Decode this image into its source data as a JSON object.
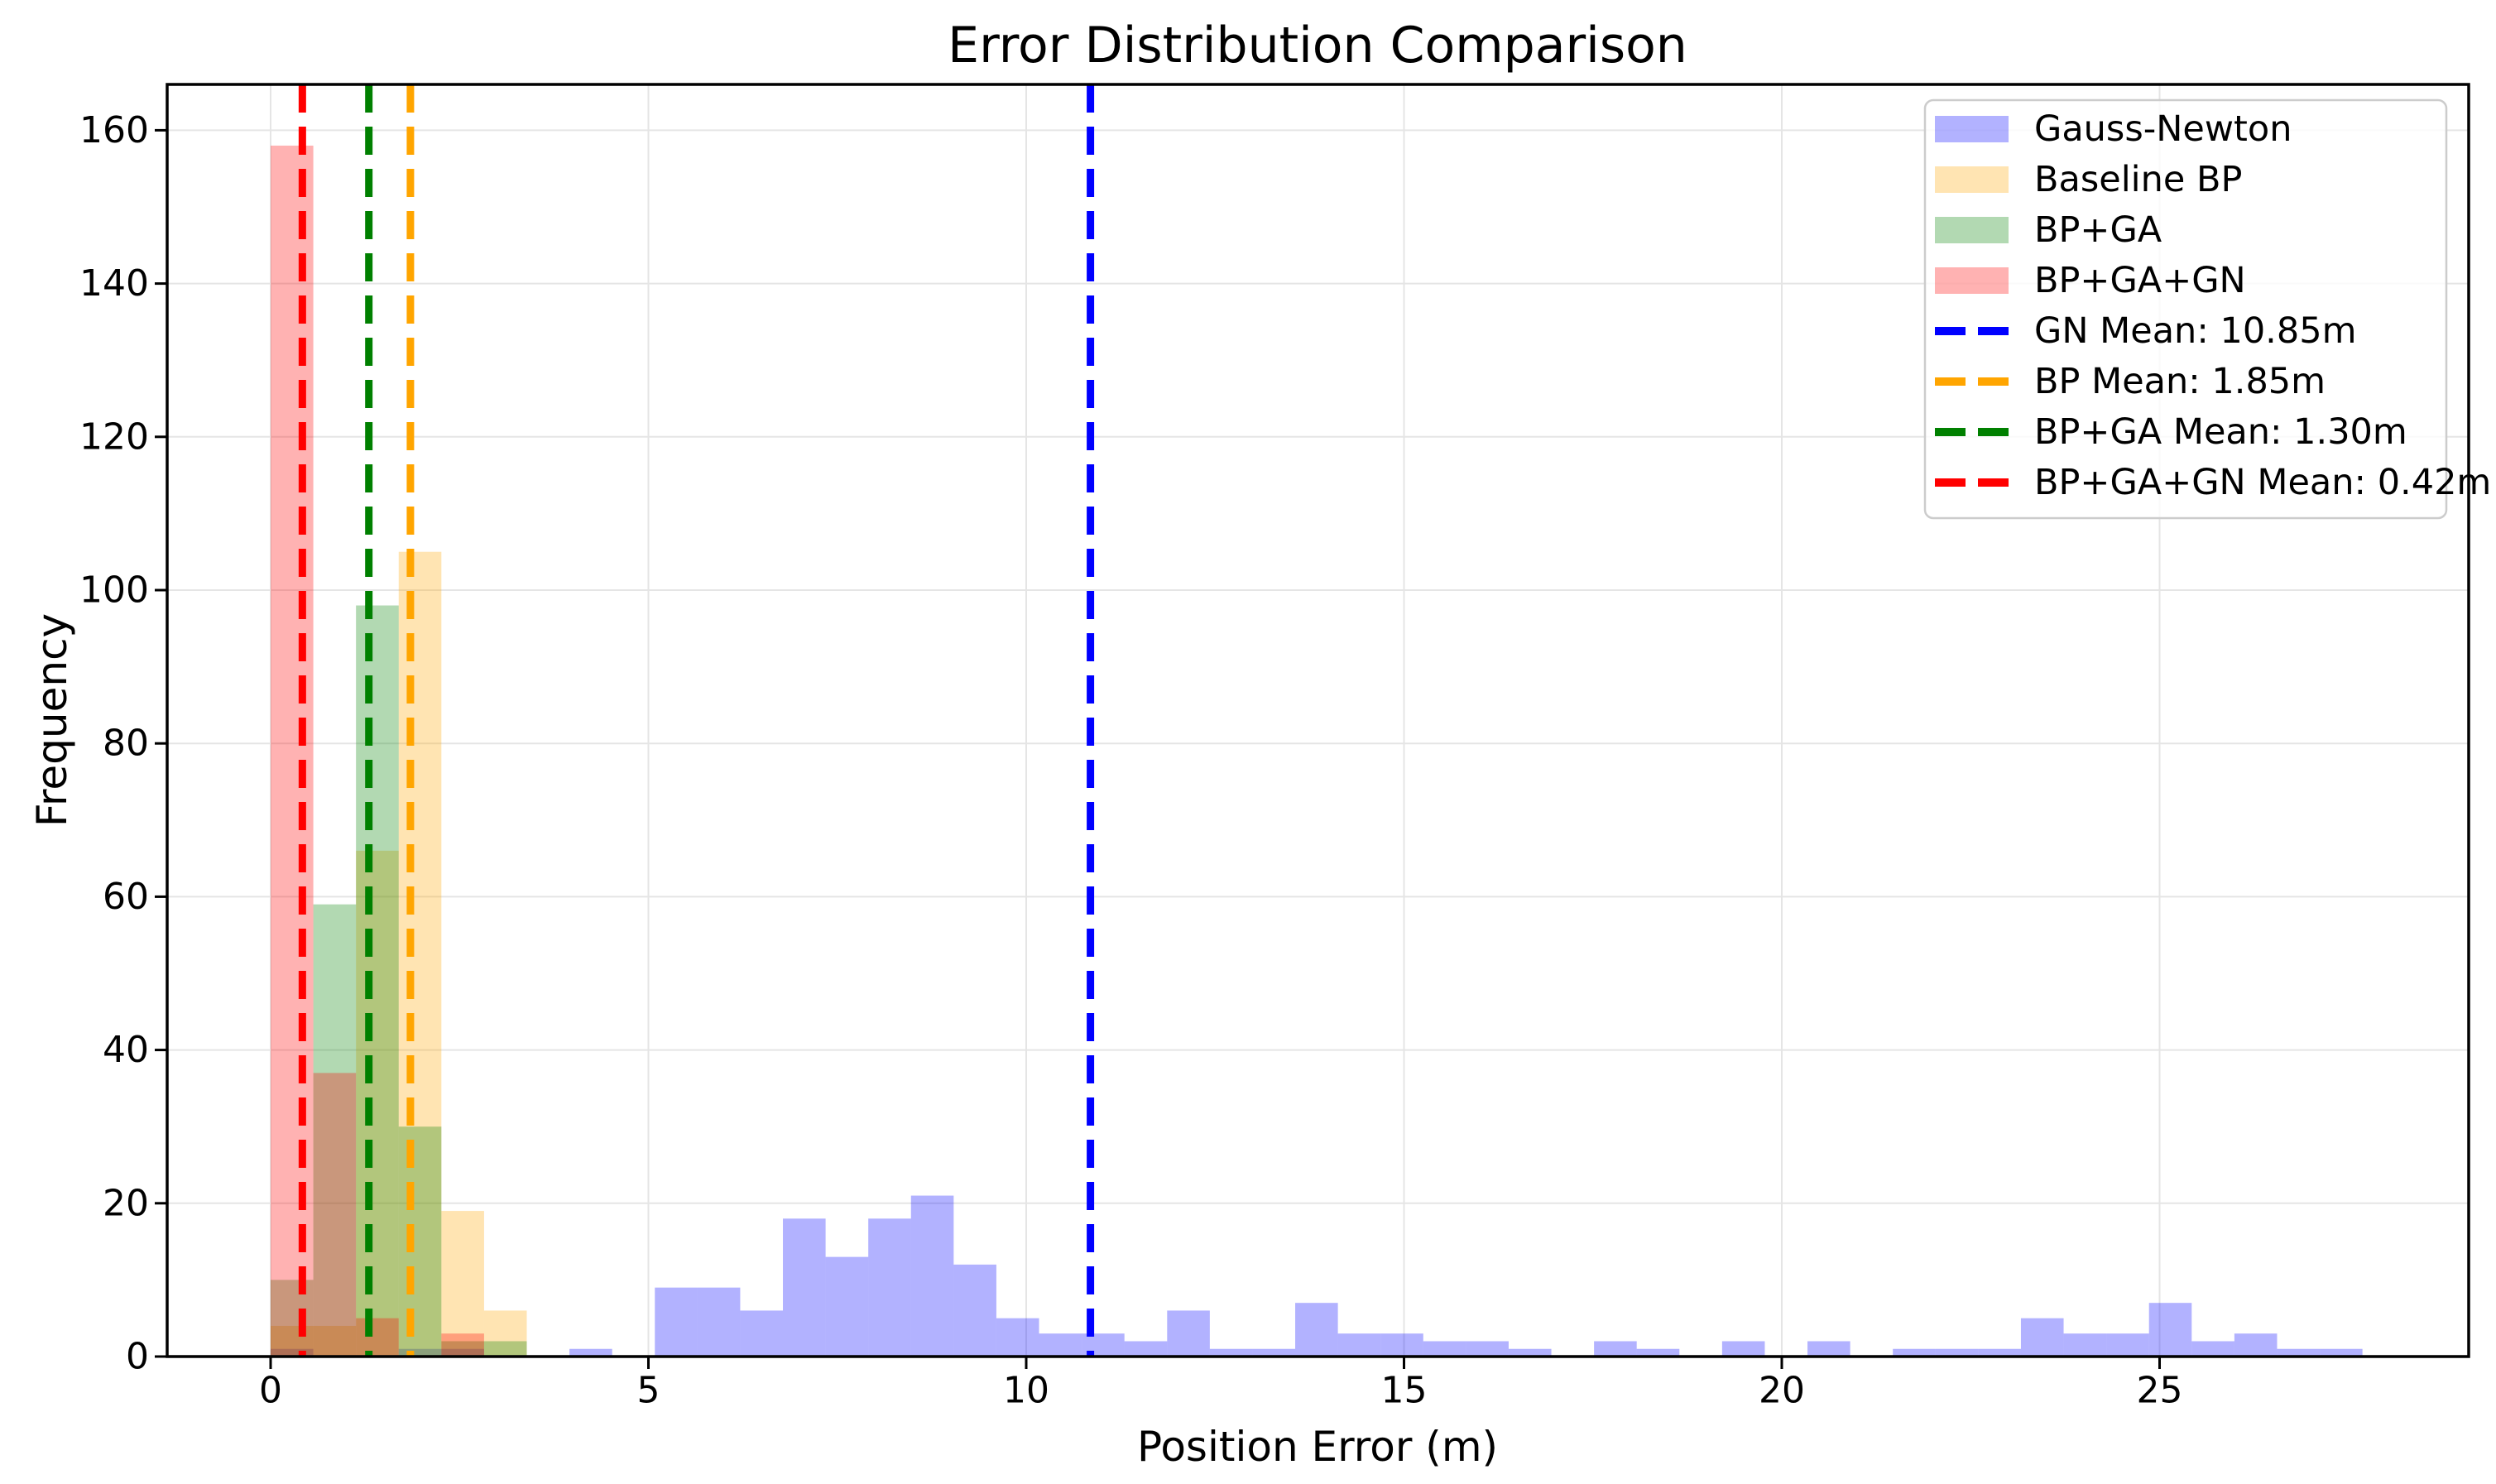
{
  "figure": {
    "title": "Error Distribution Comparison",
    "xlabel": "Position Error (m)",
    "ylabel": "Frequency",
    "background_color": "#ffffff",
    "grid_color": "#e5e5e5",
    "spine_color": "#000000"
  },
  "chart_data": {
    "type": "bar",
    "subtype": "overlapping-histograms",
    "title": "Error Distribution Comparison",
    "xlabel": "Position Error (m)",
    "ylabel": "Frequency",
    "bin_width": 0.565,
    "fill_alpha": 0.3,
    "grid": true,
    "legend_position": "upper right",
    "xlim": [
      -1.37,
      29.1
    ],
    "ylim": [
      0,
      166
    ],
    "x_ticks": [
      0,
      5,
      10,
      15,
      20,
      25
    ],
    "y_ticks": [
      0,
      20,
      40,
      60,
      80,
      100,
      120,
      140,
      160
    ],
    "series": [
      {
        "name": "Gauss-Newton",
        "color": "#0000ff",
        "bars": [
          [
            0,
            1
          ],
          [
            1.695,
            1
          ],
          [
            2.26,
            1
          ],
          [
            3.955,
            1
          ],
          [
            5.085,
            9
          ],
          [
            5.65,
            9
          ],
          [
            6.215,
            6
          ],
          [
            6.78,
            18
          ],
          [
            7.345,
            13
          ],
          [
            7.91,
            18
          ],
          [
            8.475,
            21
          ],
          [
            9.04,
            12
          ],
          [
            9.605,
            5
          ],
          [
            10.17,
            3
          ],
          [
            10.735,
            3
          ],
          [
            11.3,
            2
          ],
          [
            11.865,
            6
          ],
          [
            12.43,
            1
          ],
          [
            12.995,
            1
          ],
          [
            13.56,
            7
          ],
          [
            14.125,
            3
          ],
          [
            14.69,
            3
          ],
          [
            15.255,
            2
          ],
          [
            15.82,
            2
          ],
          [
            16.385,
            1
          ],
          [
            17.515,
            2
          ],
          [
            18.08,
            1
          ],
          [
            19.21,
            2
          ],
          [
            20.34,
            2
          ],
          [
            21.47,
            1
          ],
          [
            22.035,
            1
          ],
          [
            22.6,
            1
          ],
          [
            23.165,
            5
          ],
          [
            23.73,
            3
          ],
          [
            24.295,
            3
          ],
          [
            24.86,
            7
          ],
          [
            25.425,
            2
          ],
          [
            25.99,
            3
          ],
          [
            26.555,
            1
          ],
          [
            27.12,
            1
          ]
        ]
      },
      {
        "name": "Baseline BP",
        "color": "#ffa500",
        "bars": [
          [
            0,
            4
          ],
          [
            0.565,
            4
          ],
          [
            1.13,
            66
          ],
          [
            1.695,
            105
          ],
          [
            2.26,
            19
          ],
          [
            2.825,
            6
          ]
        ]
      },
      {
        "name": "BP+GA",
        "color": "#008000",
        "bars": [
          [
            0,
            10
          ],
          [
            0.565,
            59
          ],
          [
            1.13,
            98
          ],
          [
            1.695,
            30
          ],
          [
            2.26,
            2
          ],
          [
            2.825,
            2
          ]
        ]
      },
      {
        "name": "BP+GA+GN",
        "color": "#ff0000",
        "bars": [
          [
            0,
            158
          ],
          [
            0.565,
            37
          ],
          [
            1.13,
            5
          ],
          [
            2.26,
            3
          ]
        ]
      }
    ],
    "mean_lines": [
      {
        "label": "GN Mean: 10.85m",
        "x": 10.85,
        "color": "#0000ff"
      },
      {
        "label": "BP Mean: 1.85m",
        "x": 1.85,
        "color": "#ffa500"
      },
      {
        "label": "BP+GA Mean: 1.30m",
        "x": 1.3,
        "color": "#008000"
      },
      {
        "label": "BP+GA+GN Mean: 0.42m",
        "x": 0.42,
        "color": "#ff0000"
      }
    ]
  },
  "legend": {
    "entries": [
      {
        "type": "patch",
        "label": "Gauss-Newton",
        "color": "#0000ff"
      },
      {
        "type": "patch",
        "label": "Baseline BP",
        "color": "#ffa500"
      },
      {
        "type": "patch",
        "label": "BP+GA",
        "color": "#008000"
      },
      {
        "type": "patch",
        "label": "BP+GA+GN",
        "color": "#ff0000"
      },
      {
        "type": "dashed-line",
        "label": "GN Mean: 10.85m",
        "color": "#0000ff"
      },
      {
        "type": "dashed-line",
        "label": "BP Mean: 1.85m",
        "color": "#ffa500"
      },
      {
        "type": "dashed-line",
        "label": "BP+GA Mean: 1.30m",
        "color": "#008000"
      },
      {
        "type": "dashed-line",
        "label": "BP+GA+GN Mean: 0.42m",
        "color": "#ff0000"
      }
    ]
  }
}
